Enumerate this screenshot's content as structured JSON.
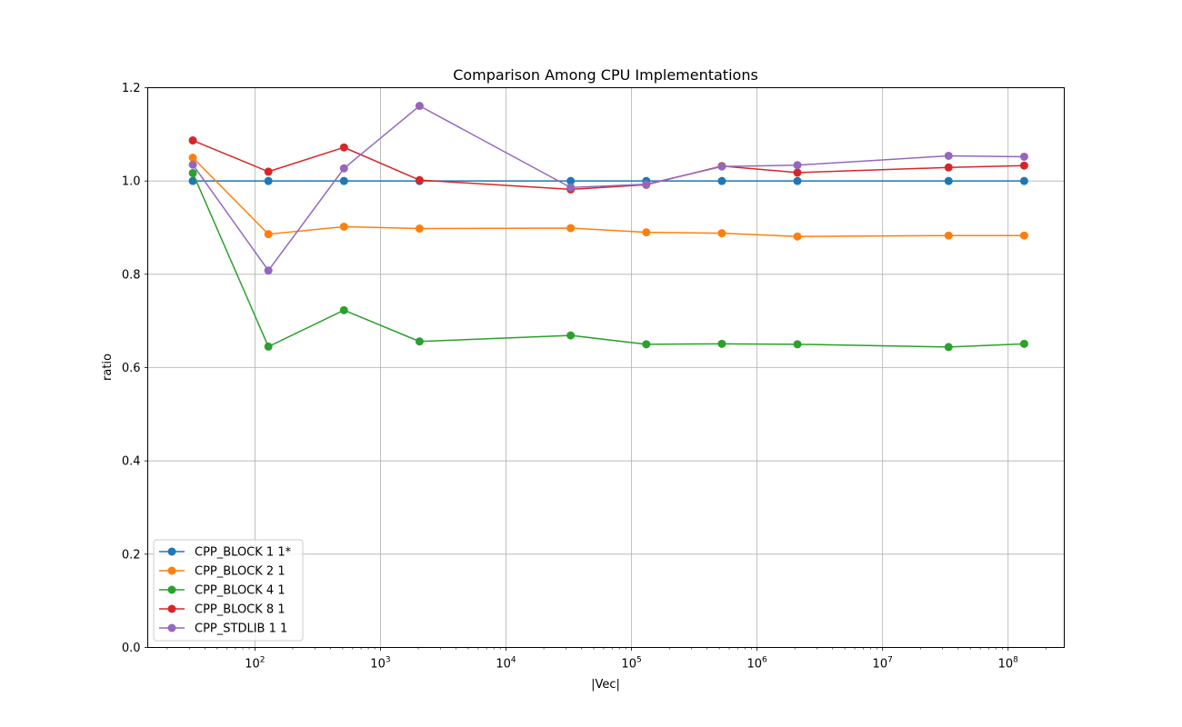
{
  "chart_data": {
    "type": "line",
    "title": "Comparison Among CPU Implementations",
    "xlabel": "|Vec|",
    "ylabel": "ratio",
    "xscale": "log",
    "xlim": [
      14,
      280000000
    ],
    "ylim": [
      0.0,
      1.2
    ],
    "yticks": [
      0.0,
      0.2,
      0.4,
      0.6,
      0.8,
      1.0,
      1.2
    ],
    "xticks": [
      {
        "value": 100,
        "base": "10",
        "exp": "2"
      },
      {
        "value": 1000,
        "base": "10",
        "exp": "3"
      },
      {
        "value": 10000,
        "base": "10",
        "exp": "4"
      },
      {
        "value": 100000,
        "base": "10",
        "exp": "5"
      },
      {
        "value": 1000000,
        "base": "10",
        "exp": "6"
      },
      {
        "value": 10000000,
        "base": "10",
        "exp": "7"
      },
      {
        "value": 100000000,
        "base": "10",
        "exp": "8"
      }
    ],
    "grid": true,
    "legend_position": "lower-left",
    "x": [
      32,
      128,
      512,
      2048,
      32768,
      131072,
      524288,
      2097152,
      33554432,
      134217728
    ],
    "series": [
      {
        "name": "CPP_BLOCK 1 1*",
        "color": "#1f77b4",
        "values": [
          1.0,
          1.0,
          1.0,
          1.0,
          1.0,
          1.0,
          1.0,
          1.0,
          1.0,
          1.0
        ]
      },
      {
        "name": "CPP_BLOCK 2 1",
        "color": "#ff7f0e",
        "values": [
          1.05,
          0.886,
          0.902,
          0.898,
          0.899,
          0.89,
          0.888,
          0.881,
          0.883,
          0.883
        ]
      },
      {
        "name": "CPP_BLOCK 4 1",
        "color": "#2ca02c",
        "values": [
          1.017,
          0.645,
          0.723,
          0.656,
          0.669,
          0.65,
          0.651,
          0.65,
          0.644,
          0.651
        ]
      },
      {
        "name": "CPP_BLOCK 8 1",
        "color": "#d62728",
        "values": [
          1.087,
          1.02,
          1.072,
          1.002,
          0.982,
          0.992,
          1.032,
          1.018,
          1.029,
          1.033
        ]
      },
      {
        "name": "CPP_STDLIB 1 1",
        "color": "#9467bd",
        "values": [
          1.035,
          0.808,
          1.027,
          1.161,
          0.986,
          0.993,
          1.031,
          1.034,
          1.054,
          1.052
        ]
      }
    ]
  }
}
